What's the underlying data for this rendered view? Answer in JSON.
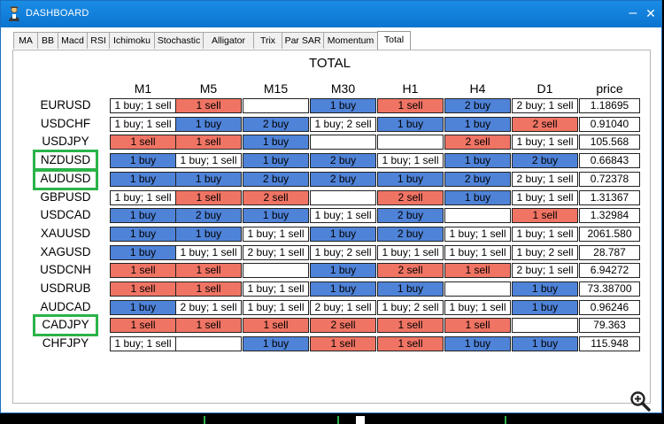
{
  "window": {
    "title": "DASHBOARD"
  },
  "tabs": [
    "MA",
    "BB",
    "Macd",
    "RSI",
    "Ichimoku",
    "Stochastic",
    "Alligator",
    "Trix",
    "Par SAR",
    "Momentum",
    "Total"
  ],
  "active_tab": "Total",
  "grid": {
    "title": "TOTAL",
    "columns": [
      "M1",
      "M5",
      "M15",
      "M30",
      "H1",
      "H4",
      "D1",
      "price"
    ],
    "rows": [
      {
        "symbol": "EURUSD",
        "cells": [
          "1 buy; 1 sell",
          "1 sell",
          "",
          "1 buy",
          "1 sell",
          "2 buy",
          "2 buy; 1 sell"
        ],
        "price": "1.18695"
      },
      {
        "symbol": "USDCHF",
        "cells": [
          "1 buy; 1 sell",
          "1 buy",
          "2 buy",
          "1 buy; 2 sell",
          "1 buy",
          "1 buy",
          "2 sell"
        ],
        "price": "0.91040"
      },
      {
        "symbol": "USDJPY",
        "cells": [
          "1 sell",
          "1 sell",
          "1 buy",
          "",
          "",
          "2 sell",
          "1 buy; 1 sell"
        ],
        "price": "105.568"
      },
      {
        "symbol": "NZDUSD",
        "cells": [
          "1 buy",
          "1 buy; 1 sell",
          "1 buy",
          "2 buy",
          "1 buy; 1 sell",
          "1 buy",
          "2 buy"
        ],
        "price": "0.66843"
      },
      {
        "symbol": "AUDUSD",
        "cells": [
          "1 buy",
          "1 buy",
          "2 buy",
          "2 buy",
          "1 buy",
          "2 buy",
          "2 buy; 1 sell"
        ],
        "price": "0.72378"
      },
      {
        "symbol": "GBPUSD",
        "cells": [
          "1 buy; 1 sell",
          "1 sell",
          "2 sell",
          "",
          "2 sell",
          "1 buy",
          "1 buy; 1 sell"
        ],
        "price": "1.31367"
      },
      {
        "symbol": "USDCAD",
        "cells": [
          "1 buy",
          "2 buy",
          "1 buy",
          "1 buy; 1 sell",
          "2 buy",
          "",
          "1 sell"
        ],
        "price": "1.32984"
      },
      {
        "symbol": "XAUUSD",
        "cells": [
          "1 buy",
          "1 buy",
          "1 buy; 1 sell",
          "1 buy",
          "2 buy",
          "1 buy; 1 sell",
          "1 buy; 1 sell"
        ],
        "price": "2061.580"
      },
      {
        "symbol": "XAGUSD",
        "cells": [
          "1 buy",
          "1 buy; 1 sell",
          "2 buy; 1 sell",
          "1 buy; 2 sell",
          "1 buy; 1 sell",
          "1 buy; 1 sell",
          "1 buy; 2 sell"
        ],
        "price": "28.787"
      },
      {
        "symbol": "USDCNH",
        "cells": [
          "1 sell",
          "1 sell",
          "",
          "1 buy",
          "2 sell",
          "1 sell",
          "2 buy; 1 sell"
        ],
        "price": "6.94272"
      },
      {
        "symbol": "USDRUB",
        "cells": [
          "1 sell",
          "1 sell",
          "1 buy; 1 sell",
          "1 buy",
          "1 buy",
          "",
          "1 buy"
        ],
        "price": "73.38700"
      },
      {
        "symbol": "AUDCAD",
        "cells": [
          "1 buy",
          "2 buy; 1 sell",
          "1 buy; 1 sell",
          "2 buy; 1 sell",
          "1 buy; 2 sell",
          "1 buy; 1 sell",
          "1 buy"
        ],
        "price": "0.96246"
      },
      {
        "symbol": "CADJPY",
        "cells": [
          "1 sell",
          "1 sell",
          "1 sell",
          "2 sell",
          "1 sell",
          "1 sell",
          ""
        ],
        "price": "79.363"
      },
      {
        "symbol": "CHFJPY",
        "cells": [
          "1 buy; 1 sell",
          "",
          "1 buy",
          "1 sell",
          "1 sell",
          "1 buy",
          "1 buy"
        ],
        "price": "115.948"
      }
    ],
    "highlighted_symbols": [
      "NZDUSD",
      "AUDUSD",
      "CADJPY"
    ]
  },
  "colors": {
    "buy": "#4f83d8",
    "sell": "#f07464",
    "mixed": "#ffffff",
    "highlight": "#2bb34a",
    "titlebar": "#0f7fd8"
  },
  "icons": {
    "app": "trader-icon",
    "minimize": "minimize-icon",
    "close": "close-icon",
    "zoom": "zoom-icon"
  }
}
